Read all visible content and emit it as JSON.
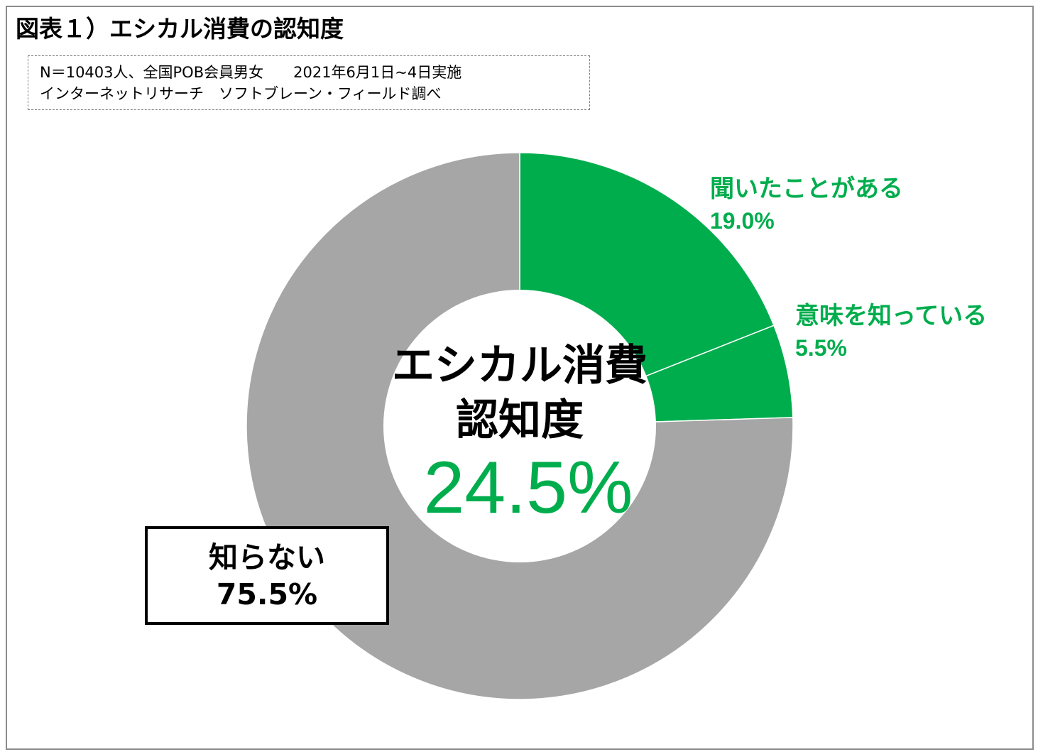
{
  "title": "図表１）エシカル消費の認知度",
  "note": {
    "line1": "N＝10403人、全国POB会員男女　　2021年6月1日~4日実施",
    "line2": "インターネットリサーチ　ソフトブレーン・フィールド調べ"
  },
  "center": {
    "line1": "エシカル消費",
    "line2": "認知度",
    "value": "24.5%"
  },
  "colors": {
    "green": "#00ad4d",
    "gray": "#a6a6a6"
  },
  "chart_data": {
    "type": "pie",
    "categories": [
      "聞いたことがある",
      "意味を知っている",
      "知らない"
    ],
    "values": [
      19.0,
      5.5,
      75.5
    ],
    "value_labels": [
      "19.0%",
      "5.5%",
      "75.5%"
    ],
    "colors": [
      "#00ad4d",
      "#00ad4d",
      "#a6a6a6"
    ],
    "donut": true
  }
}
